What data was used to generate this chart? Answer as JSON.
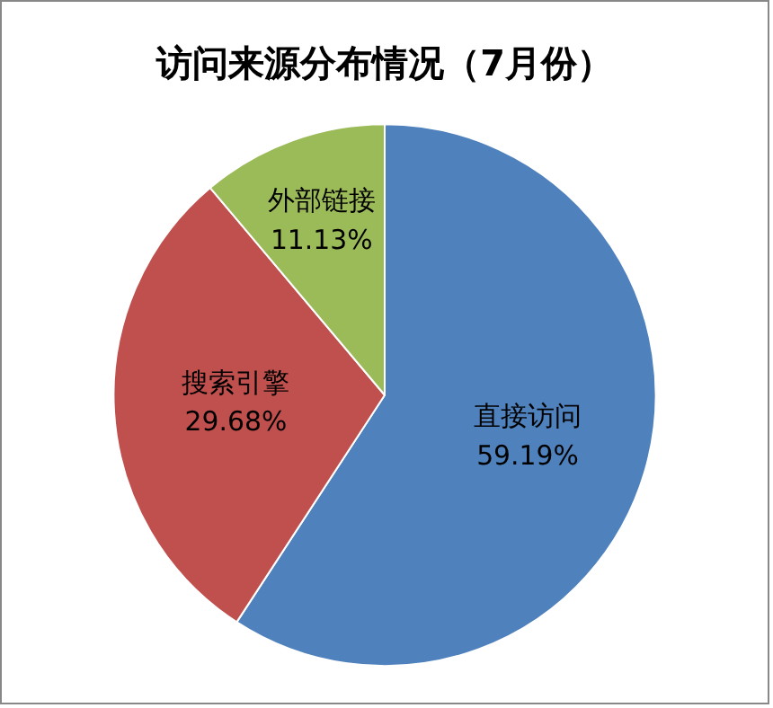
{
  "chart_data": {
    "type": "pie",
    "title": "访问来源分布情况（7月份）",
    "categories": [
      "直接访问",
      "搜索引擎",
      "外部链接"
    ],
    "values": [
      59.19,
      29.68,
      11.13
    ],
    "colors": [
      "#4f81bd",
      "#c0504d",
      "#9bbb59"
    ],
    "value_labels": [
      "59.19%",
      "29.68%",
      "11.13%"
    ],
    "legend": false
  }
}
